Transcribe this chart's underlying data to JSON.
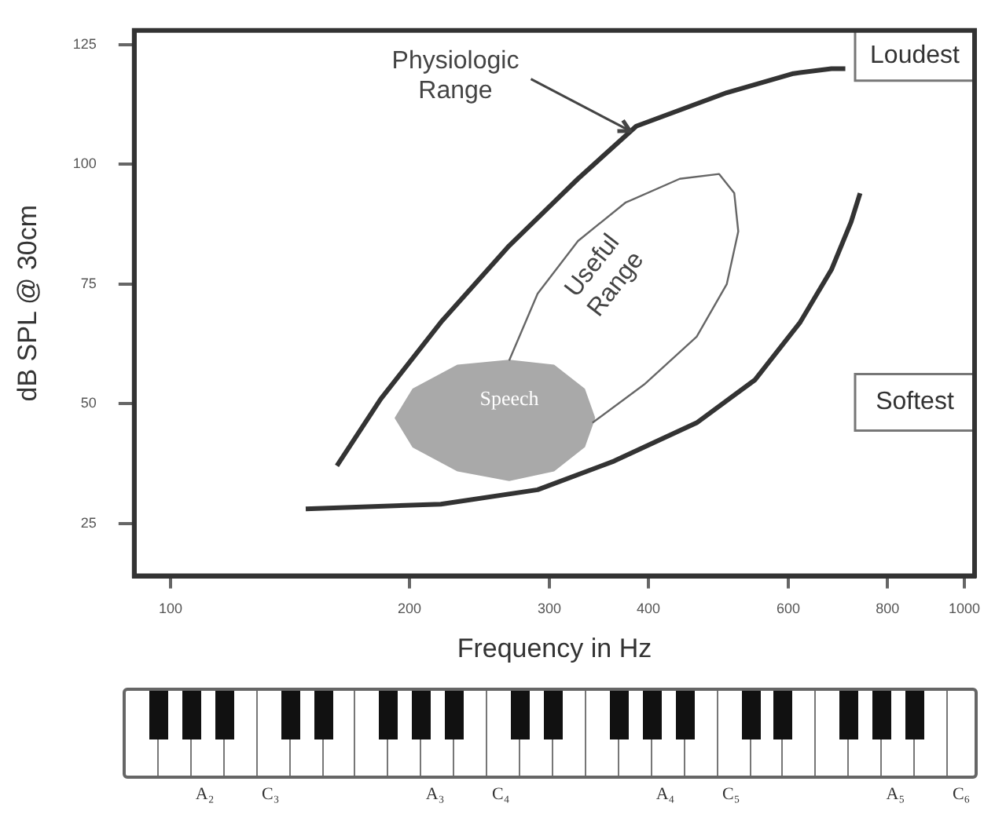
{
  "chart_data": {
    "type": "line",
    "xlabel": "Frequency in Hz",
    "ylabel": "dB SPL @ 30cm",
    "log": "x",
    "xlim": [
      90,
      1030
    ],
    "ylim": [
      14,
      128
    ],
    "xticks": [
      100,
      200,
      300,
      400,
      600,
      800,
      1000
    ],
    "yticks": [
      25,
      50,
      75,
      100,
      125
    ],
    "grid": false,
    "legend": false,
    "marker": "none",
    "line_style": "solid",
    "series": [
      {
        "name": "Physiologic Range",
        "color": "#333333",
        "x": [
          162,
          184,
          219,
          267,
          326,
          386,
          502,
          609,
          680,
          708
        ],
        "values": [
          37,
          51,
          67,
          83,
          97,
          108,
          115,
          119,
          120,
          120
        ]
      },
      {
        "color": "#333333",
        "x": [
          148,
          219,
          290,
          362,
          460,
          545,
          621,
          680,
          720,
          739
        ],
        "values": [
          28,
          29,
          32,
          38,
          46,
          55,
          67,
          78,
          88,
          94
        ]
      },
      {
        "name": "Useful Range",
        "color": "#666666",
        "x": [
          267,
          290,
          326,
          374,
          438,
          491,
          513,
          519,
          502,
          460,
          395,
          340
        ],
        "values": [
          59,
          73,
          84,
          92,
          97,
          98,
          94,
          86,
          75,
          64,
          54,
          46
        ]
      },
      {
        "name": "Speech",
        "type": "area",
        "color": "#a9a9a9",
        "x": [
          342,
          332,
          304,
          267,
          230,
          202,
          192,
          202,
          230,
          267,
          304,
          332,
          342
        ],
        "values": [
          47,
          53,
          58,
          59,
          58,
          53,
          47,
          41,
          36,
          34,
          36,
          41,
          47
        ]
      }
    ],
    "annotations": [
      "Loudest",
      "Softest",
      "A₂",
      "C₃",
      "A₃",
      "C₄",
      "A₄",
      "C₅",
      "A₅",
      "C₆"
    ]
  }
}
